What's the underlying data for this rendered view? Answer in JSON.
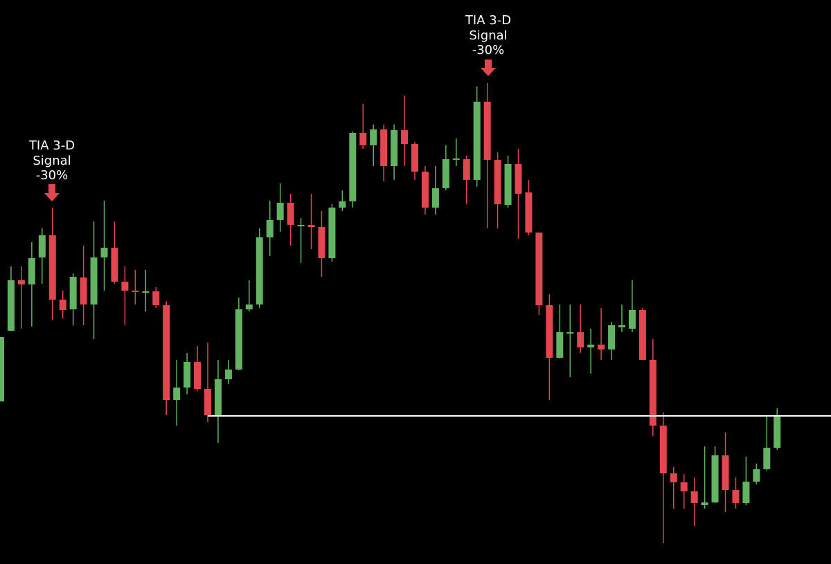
{
  "chart_data": {
    "type": "candlestick",
    "ylim": [
      0,
      815
    ],
    "up_color": "#62b462",
    "down_color": "#e2474f",
    "level_color": "#ffffff",
    "level": 214,
    "annotations": [
      {
        "lines": [
          "TIA 3-D",
          "Signal",
          "-30%"
        ]
      },
      {
        "lines": [
          "TIA 3-D",
          "Signal",
          "-30%"
        ]
      }
    ],
    "open": [
      235,
      337,
      410,
      404,
      443,
      475,
      382,
      368,
      414,
      375,
      443,
      457,
      408,
      395,
      392,
      394,
      374,
      237,
      255,
      292,
      253,
      215,
      267,
      281,
      368,
      375,
      472,
      497,
      522,
      488,
      490,
      487,
      442,
      515,
      524,
      623,
      605,
      628,
      575,
      627,
      607,
      567,
      515,
      543,
      584,
      585,
      555,
      668,
      584,
      519,
      578,
      537,
      479,
      374,
      298,
      333,
      335,
      313,
      317,
      310,
      342,
      340,
      367,
      295,
      200,
      131,
      118,
      105,
      85,
      89,
      157,
      107,
      88,
      119,
      137,
      168
    ],
    "high": [
      328,
      430,
      430,
      465,
      485,
      515,
      395,
      420,
      460,
      495,
      525,
      495,
      430,
      425,
      425,
      400,
      380,
      295,
      305,
      315,
      320,
      295,
      295,
      385,
      410,
      485,
      525,
      550,
      535,
      500,
      535,
      510,
      520,
      540,
      625,
      665,
      635,
      635,
      635,
      677,
      610,
      575,
      575,
      605,
      615,
      590,
      690,
      695,
      595,
      590,
      600,
      555,
      479,
      390,
      375,
      375,
      375,
      340,
      370,
      350,
      375,
      410,
      370,
      325,
      219,
      140,
      130,
      125,
      170,
      170,
      190,
      125,
      155,
      145,
      215,
      225
    ],
    "low": [
      235,
      337,
      340,
      343,
      405,
      353,
      355,
      345,
      345,
      325,
      395,
      405,
      345,
      375,
      365,
      370,
      215,
      200,
      245,
      250,
      205,
      175,
      260,
      280,
      365,
      370,
      445,
      480,
      460,
      435,
      455,
      415,
      437,
      510,
      515,
      600,
      575,
      553,
      555,
      575,
      555,
      505,
      505,
      540,
      575,
      520,
      545,
      485,
      485,
      515,
      470,
      475,
      360,
      237,
      297,
      270,
      305,
      275,
      295,
      295,
      335,
      335,
      295,
      185,
      30,
      80,
      80,
      55,
      80,
      88,
      75,
      80,
      85,
      115,
      135,
      165
    ],
    "close": [
      328,
      410,
      404,
      442,
      475,
      382,
      367,
      415,
      375,
      443,
      457,
      408,
      395,
      393,
      394,
      374,
      237,
      255,
      292,
      253,
      215,
      267,
      281,
      368,
      375,
      472,
      497,
      522,
      490,
      490,
      487,
      442,
      515,
      524,
      623,
      605,
      628,
      575,
      627,
      607,
      567,
      515,
      543,
      585,
      586,
      555,
      668,
      584,
      520,
      578,
      535,
      479,
      374,
      298,
      335,
      335,
      313,
      317,
      310,
      345,
      345,
      367,
      295,
      200,
      131,
      118,
      105,
      88,
      89,
      157,
      107,
      88,
      119,
      137,
      168,
      215
    ]
  }
}
